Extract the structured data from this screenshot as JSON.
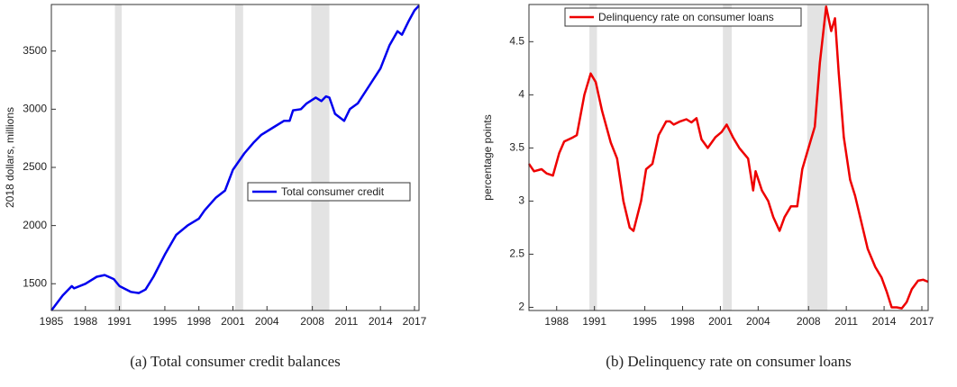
{
  "chart_data": [
    {
      "type": "line",
      "caption": "(a) Total consumer credit balances",
      "ylabel": "2018 dollars, millions",
      "xlim": [
        1985,
        2017.4
      ],
      "xticks": [
        1985,
        1988,
        1991,
        1995,
        1998,
        2001,
        2004,
        2008,
        2011,
        2014,
        2017
      ],
      "ylim": [
        1270,
        3900
      ],
      "yticks": [
        1500,
        2000,
        2500,
        3000,
        3500
      ],
      "shading_color": "#e3e3e3",
      "recessions": [
        [
          1990.6,
          1991.2
        ],
        [
          2001.2,
          2001.9
        ],
        [
          2007.9,
          2009.5
        ]
      ],
      "legend": "east",
      "x": [
        1985,
        1986,
        1986.8,
        1987,
        1988,
        1989,
        1989.7,
        1990.5,
        1991,
        1992,
        1992.7,
        1993.3,
        1994,
        1995,
        1996,
        1997,
        1998,
        1998.5,
        1999.5,
        2000.3,
        2001,
        2002,
        2002.8,
        2003.5,
        2004.5,
        2005.5,
        2006,
        2006.3,
        2007,
        2007.5,
        2008.3,
        2008.8,
        2009.2,
        2009.5,
        2010,
        2010.8,
        2011.3,
        2012,
        2013,
        2014,
        2014.8,
        2015.5,
        2015.9,
        2016.5,
        2017,
        2017.4
      ],
      "series": [
        {
          "name": "Total consumer credit",
          "color": "#0000ee",
          "values": [
            1270,
            1400,
            1480,
            1460,
            1500,
            1560,
            1575,
            1540,
            1480,
            1430,
            1420,
            1450,
            1560,
            1750,
            1920,
            2000,
            2060,
            2130,
            2240,
            2300,
            2480,
            2620,
            2710,
            2780,
            2840,
            2900,
            2900,
            2990,
            3000,
            3050,
            3100,
            3070,
            3110,
            3100,
            2960,
            2900,
            3000,
            3050,
            3200,
            3350,
            3550,
            3670,
            3640,
            3760,
            3850,
            3890
          ]
        }
      ]
    },
    {
      "type": "line",
      "caption": "(b) Delinquency rate on consumer loans",
      "ylabel": "percentage points",
      "xlim": [
        1985.8,
        2017.5
      ],
      "xticks": [
        1988,
        1991,
        1995,
        1998,
        2001,
        2004,
        2008,
        2011,
        2014,
        2017
      ],
      "ylim": [
        1.97,
        4.85
      ],
      "yticks": [
        2,
        2.5,
        3,
        3.5,
        4,
        4.5
      ],
      "shading_color": "#e3e3e3",
      "recessions": [
        [
          1990.6,
          1991.2
        ],
        [
          2001.2,
          2001.9
        ],
        [
          2007.9,
          2009.5
        ]
      ],
      "legend": "northwest",
      "x": [
        1985.8,
        1986.2,
        1986.8,
        1987.2,
        1987.7,
        1988.2,
        1988.6,
        1989.3,
        1989.6,
        1990.2,
        1990.7,
        1991.1,
        1991.6,
        1992.3,
        1992.8,
        1993.3,
        1993.8,
        1994.1,
        1994.7,
        1995.1,
        1995.6,
        1996.1,
        1996.7,
        1997,
        1997.3,
        1997.8,
        1998.3,
        1998.7,
        1999.1,
        1999.5,
        2000,
        2000.6,
        2001.1,
        2001.5,
        2002,
        2002.5,
        2003.2,
        2003.6,
        2003.8,
        2004.3,
        2004.8,
        2005.2,
        2005.7,
        2006.1,
        2006.6,
        2007.1,
        2007.5,
        2008,
        2008.5,
        2008.9,
        2009.4,
        2009.8,
        2010.1,
        2010.4,
        2010.8,
        2011.3,
        2011.7,
        2012.2,
        2012.7,
        2013.3,
        2013.8,
        2014.2,
        2014.6,
        2015,
        2015.4,
        2015.8,
        2016.2,
        2016.7,
        2017.1,
        2017.5
      ],
      "series": [
        {
          "name": "Delinquency rate on consumer loans",
          "color": "#ee0000",
          "values": [
            3.35,
            3.28,
            3.3,
            3.26,
            3.24,
            3.45,
            3.56,
            3.6,
            3.62,
            4.0,
            4.2,
            4.12,
            3.85,
            3.55,
            3.4,
            3.0,
            2.75,
            2.72,
            3.0,
            3.3,
            3.35,
            3.62,
            3.75,
            3.75,
            3.72,
            3.75,
            3.77,
            3.74,
            3.78,
            3.58,
            3.5,
            3.6,
            3.65,
            3.72,
            3.6,
            3.5,
            3.4,
            3.1,
            3.28,
            3.1,
            3.0,
            2.85,
            2.72,
            2.85,
            2.95,
            2.95,
            3.3,
            3.5,
            3.7,
            4.3,
            4.83,
            4.6,
            4.72,
            4.2,
            3.6,
            3.2,
            3.05,
            2.8,
            2.55,
            2.38,
            2.28,
            2.15,
            2.0,
            2.0,
            1.99,
            2.05,
            2.17,
            2.25,
            2.26,
            2.24
          ]
        }
      ]
    }
  ]
}
